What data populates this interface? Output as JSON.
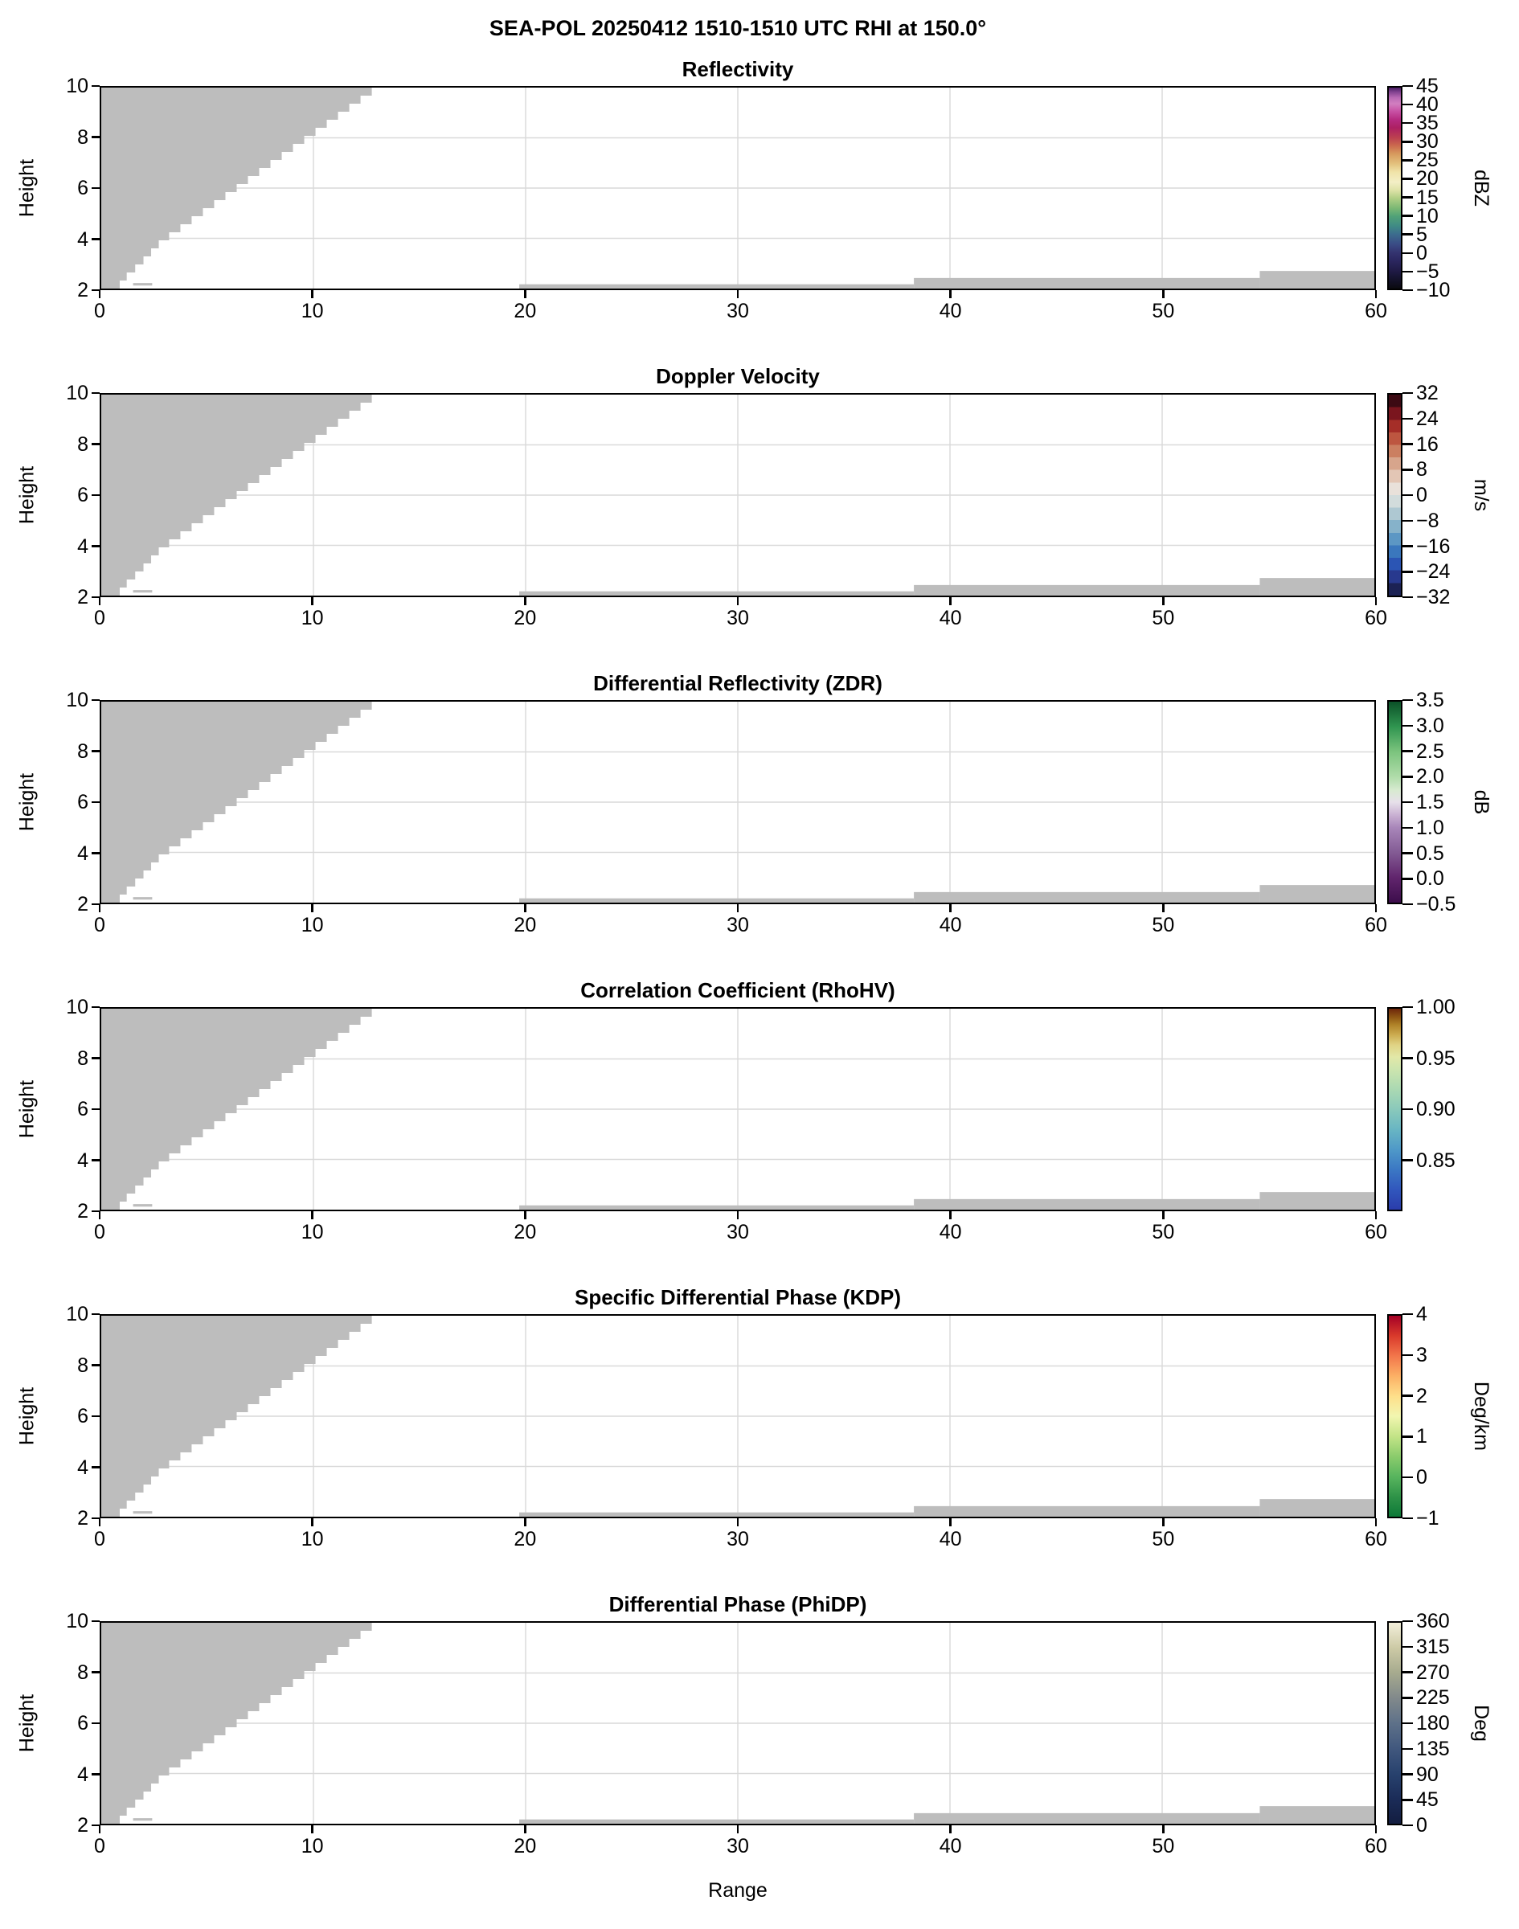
{
  "figure": {
    "suptitle": "SEA-POL 20250412 1510-1510 UTC RHI at 150.0°",
    "xlabel": "Range",
    "ylabel": "Height",
    "background": "#ffffff",
    "mask_color": "#bdbdbd",
    "grid_color": "#d9d9d9"
  },
  "axes": {
    "xlim": [
      0,
      60
    ],
    "ylim": [
      2,
      10
    ],
    "xticks": [
      0,
      10,
      20,
      30,
      40,
      50,
      60
    ],
    "xtick_labels": [
      "0",
      "10",
      "20",
      "30",
      "40",
      "50",
      "60"
    ],
    "yticks": [
      2,
      4,
      6,
      8,
      10
    ],
    "ytick_labels": [
      "2",
      "4",
      "6",
      "8",
      "10"
    ],
    "grid": true
  },
  "no_data_mask": {
    "description": "gray regions = masked / no-data areas, identical in every panel",
    "left_wedge_edge_points": [
      [
        2,
        0.55
      ],
      [
        2.6,
        1.15
      ],
      [
        3.2,
        1.9
      ],
      [
        4,
        2.8
      ],
      [
        10,
        12.75
      ]
    ],
    "step_height": 0.32,
    "bottom_strips": [
      {
        "x0": 19.7,
        "x1": 38.3,
        "h_top": 2.17
      },
      {
        "x0": 38.3,
        "x1": 54.6,
        "h_top": 2.42
      },
      {
        "x0": 54.6,
        "x1": 60.0,
        "h_top": 2.7
      }
    ],
    "speck": {
      "x0": 1.5,
      "x1": 2.4,
      "h0": 2.12,
      "h1": 2.22
    }
  },
  "chart_data": [
    {
      "type": "heatmap",
      "title": "Reflectivity",
      "xlim": [
        0,
        60
      ],
      "ylim": [
        2,
        10
      ],
      "values_note": "no echo above color-scale minimum; panel blank except gray no-data mask",
      "colorbar": {
        "unit": "dBZ",
        "vmin": -10,
        "vmax": 45,
        "discrete": false,
        "tick_labels": [
          "45",
          "40",
          "35",
          "30",
          "25",
          "20",
          "15",
          "10",
          "5",
          "0",
          "−5",
          "−10"
        ],
        "tick_values": [
          45,
          40,
          35,
          30,
          25,
          20,
          15,
          10,
          5,
          0,
          -5,
          -10
        ],
        "stops": [
          {
            "p": 0.0,
            "c": "#0a0a0f"
          },
          {
            "p": 0.05,
            "c": "#15132e"
          },
          {
            "p": 0.09,
            "c": "#201b47"
          },
          {
            "p": 0.14,
            "c": "#2b2760"
          },
          {
            "p": 0.18,
            "c": "#343470"
          },
          {
            "p": 0.22,
            "c": "#3a4b85"
          },
          {
            "p": 0.27,
            "c": "#3c6c8e"
          },
          {
            "p": 0.31,
            "c": "#3f8a85"
          },
          {
            "p": 0.36,
            "c": "#51a277"
          },
          {
            "p": 0.4,
            "c": "#7cb874"
          },
          {
            "p": 0.45,
            "c": "#b2cf85"
          },
          {
            "p": 0.49,
            "c": "#dfe3a8"
          },
          {
            "p": 0.53,
            "c": "#f3efc6"
          },
          {
            "p": 0.58,
            "c": "#f0e3a8"
          },
          {
            "p": 0.62,
            "c": "#e3c27e"
          },
          {
            "p": 0.67,
            "c": "#d79a5e"
          },
          {
            "p": 0.71,
            "c": "#cb6b4e"
          },
          {
            "p": 0.75,
            "c": "#bc4150"
          },
          {
            "p": 0.8,
            "c": "#ad2062"
          },
          {
            "p": 0.84,
            "c": "#b52b80"
          },
          {
            "p": 0.88,
            "c": "#c74fa2"
          },
          {
            "p": 0.92,
            "c": "#d27fc0"
          },
          {
            "p": 0.95,
            "c": "#b969b4"
          },
          {
            "p": 0.98,
            "c": "#7d3f8d"
          },
          {
            "p": 1.0,
            "c": "#491d63"
          }
        ]
      }
    },
    {
      "type": "heatmap",
      "title": "Doppler Velocity",
      "xlim": [
        0,
        60
      ],
      "ylim": [
        2,
        10
      ],
      "values_note": "no echo above color-scale minimum; panel blank except gray no-data mask",
      "colorbar": {
        "unit": "m/s",
        "vmin": -32,
        "vmax": 32,
        "discrete": true,
        "tick_labels": [
          "32",
          "24",
          "16",
          "8",
          "0",
          "−8",
          "−16",
          "−24",
          "−32"
        ],
        "tick_values": [
          32,
          24,
          16,
          8,
          0,
          -8,
          -16,
          -24,
          -32
        ],
        "bands": [
          "#1c2254",
          "#28398e",
          "#2b55b4",
          "#3a77bd",
          "#5c97c4",
          "#86b2ca",
          "#aec8d2",
          "#d2dcdc",
          "#e9e1da",
          "#e3c6b5",
          "#d7a58c",
          "#cb7f61",
          "#bd5640",
          "#a52e28",
          "#7a151e",
          "#3c0a13"
        ]
      }
    },
    {
      "type": "heatmap",
      "title": "Differential Reflectivity (ZDR)",
      "xlim": [
        0,
        60
      ],
      "ylim": [
        2,
        10
      ],
      "values_note": "no echo above color-scale minimum; panel blank except gray no-data mask",
      "colorbar": {
        "unit": "dB",
        "vmin": -0.5,
        "vmax": 3.5,
        "discrete": false,
        "tick_labels": [
          "3.5",
          "3.0",
          "2.5",
          "2.0",
          "1.5",
          "1.0",
          "0.5",
          "0.0",
          "−0.5"
        ],
        "tick_values": [
          3.5,
          3.0,
          2.5,
          2.0,
          1.5,
          1.0,
          0.5,
          0.0,
          -0.5
        ],
        "stops": [
          {
            "p": 0.0,
            "c": "#3c0d4b"
          },
          {
            "p": 0.125,
            "c": "#61256d"
          },
          {
            "p": 0.25,
            "c": "#835b94"
          },
          {
            "p": 0.375,
            "c": "#a987ba"
          },
          {
            "p": 0.44,
            "c": "#cbb3d4"
          },
          {
            "p": 0.5,
            "c": "#e7e0ea"
          },
          {
            "p": 0.56,
            "c": "#d7ead0"
          },
          {
            "p": 0.625,
            "c": "#b0dcaa"
          },
          {
            "p": 0.75,
            "c": "#7cc47e"
          },
          {
            "p": 0.875,
            "c": "#309550"
          },
          {
            "p": 1.0,
            "c": "#0b5128"
          }
        ]
      }
    },
    {
      "type": "heatmap",
      "title": "Correlation Coefficient (RhoHV)",
      "xlim": [
        0,
        60
      ],
      "ylim": [
        2,
        10
      ],
      "values_note": "no echo above color-scale minimum; panel blank except gray no-data mask",
      "colorbar": {
        "unit": "",
        "vmin": 0.8,
        "vmax": 1.0,
        "discrete": false,
        "tick_labels": [
          "1.00",
          "0.95",
          "0.90",
          "0.85"
        ],
        "tick_values": [
          1.0,
          0.95,
          0.9,
          0.85
        ],
        "stops": [
          {
            "p": 0.0,
            "c": "#2a3cab"
          },
          {
            "p": 0.1,
            "c": "#3157bd"
          },
          {
            "p": 0.2,
            "c": "#3b78c4"
          },
          {
            "p": 0.3,
            "c": "#4f99c8"
          },
          {
            "p": 0.4,
            "c": "#69b6c3"
          },
          {
            "p": 0.5,
            "c": "#8ac9bb"
          },
          {
            "p": 0.6,
            "c": "#abd9b2"
          },
          {
            "p": 0.7,
            "c": "#cde5ae"
          },
          {
            "p": 0.76,
            "c": "#e2e8a8"
          },
          {
            "p": 0.82,
            "c": "#e0d384"
          },
          {
            "p": 0.87,
            "c": "#ccac50"
          },
          {
            "p": 0.92,
            "c": "#b08228"
          },
          {
            "p": 0.96,
            "c": "#8d5413"
          },
          {
            "p": 1.0,
            "c": "#6d250b"
          }
        ]
      }
    },
    {
      "type": "heatmap",
      "title": "Specific Differential Phase (KDP)",
      "xlim": [
        0,
        60
      ],
      "ylim": [
        2,
        10
      ],
      "values_note": "no echo above color-scale minimum; panel blank except gray no-data mask",
      "colorbar": {
        "unit": "Deg/km",
        "vmin": -1,
        "vmax": 4,
        "discrete": false,
        "tick_labels": [
          "4",
          "3",
          "2",
          "1",
          "0",
          "−1"
        ],
        "tick_values": [
          4,
          3,
          2,
          1,
          0,
          -1
        ],
        "stops": [
          {
            "p": 0.0,
            "c": "#0d7a38"
          },
          {
            "p": 0.1,
            "c": "#2f9348"
          },
          {
            "p": 0.2,
            "c": "#58b55e"
          },
          {
            "p": 0.3,
            "c": "#8bcc6c"
          },
          {
            "p": 0.4,
            "c": "#c3e487"
          },
          {
            "p": 0.5,
            "c": "#f2f6b0"
          },
          {
            "p": 0.6,
            "c": "#fedf8a"
          },
          {
            "p": 0.7,
            "c": "#fcb065"
          },
          {
            "p": 0.8,
            "c": "#f2764b"
          },
          {
            "p": 0.9,
            "c": "#d93a2b"
          },
          {
            "p": 1.0,
            "c": "#a50026"
          }
        ]
      }
    },
    {
      "type": "heatmap",
      "title": "Differential Phase (PhiDP)",
      "xlim": [
        0,
        60
      ],
      "ylim": [
        2,
        10
      ],
      "values_note": "no echo above color-scale minimum; panel blank except gray no-data mask",
      "colorbar": {
        "unit": "Deg",
        "vmin": 0,
        "vmax": 360,
        "discrete": false,
        "tick_labels": [
          "360",
          "315",
          "270",
          "225",
          "180",
          "135",
          "90",
          "45",
          "0"
        ],
        "tick_values": [
          360,
          315,
          270,
          225,
          180,
          135,
          90,
          45,
          0
        ],
        "stops": [
          {
            "p": 0.0,
            "c": "#131d40"
          },
          {
            "p": 0.125,
            "c": "#1b2c58"
          },
          {
            "p": 0.25,
            "c": "#28426e"
          },
          {
            "p": 0.375,
            "c": "#41587e"
          },
          {
            "p": 0.5,
            "c": "#5e7189"
          },
          {
            "p": 0.625,
            "c": "#81898b"
          },
          {
            "p": 0.75,
            "c": "#a6aa8e"
          },
          {
            "p": 0.875,
            "c": "#cdcaa6"
          },
          {
            "p": 1.0,
            "c": "#f3efda"
          }
        ]
      }
    }
  ]
}
